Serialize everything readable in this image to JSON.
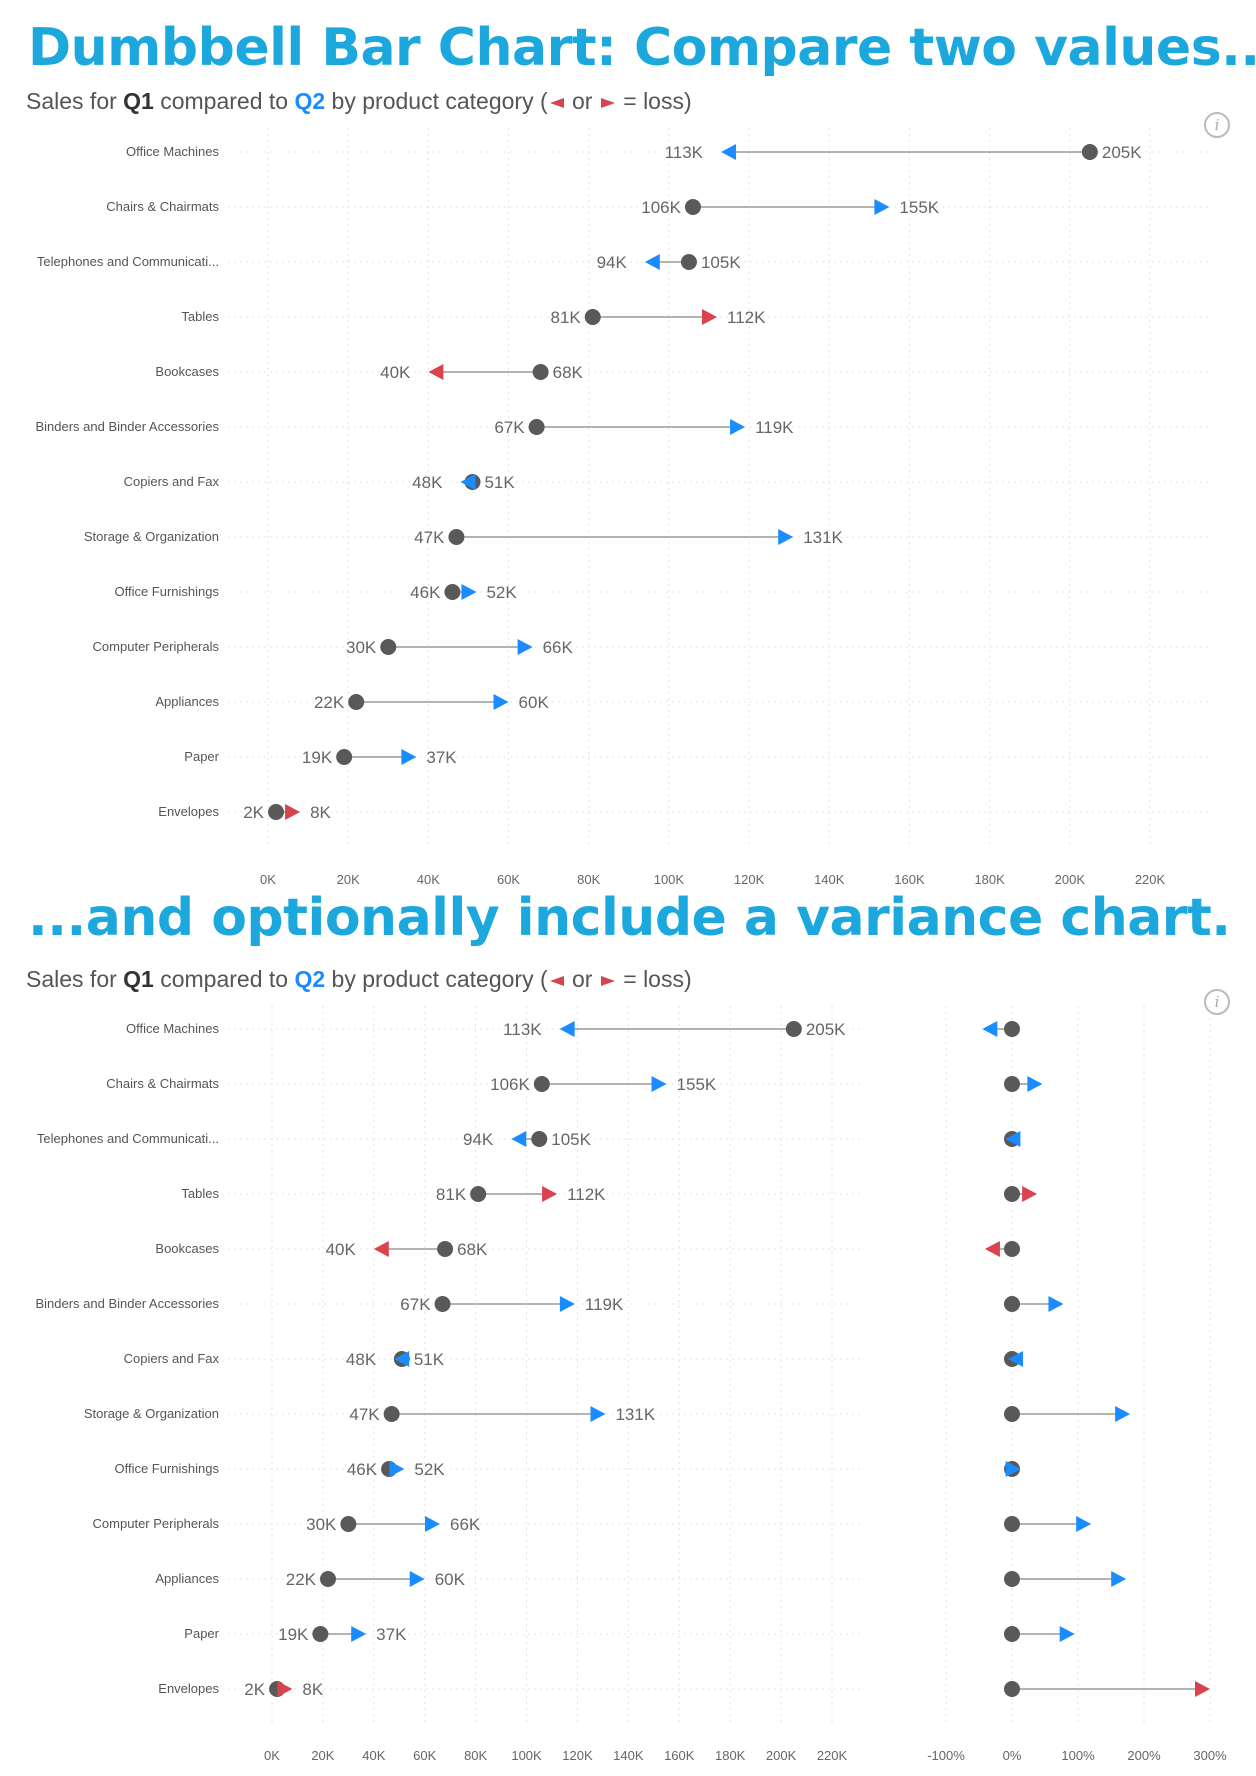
{
  "headline_top": "Dumbbell Bar Chart: Compare two values...",
  "headline_bottom": "...and optionally include a variance chart.",
  "subtitle": {
    "prefix": "Sales for ",
    "q1": "Q1",
    "middle": " compared to ",
    "q2": "Q2",
    "suffix_before": " by product category (",
    "or_text": " or ",
    "suffix_after": " = loss)"
  },
  "info_icon": "info-icon",
  "colors": {
    "gain": "#1a8cff",
    "loss": "#d9434e",
    "dot": "#595959",
    "line": "#b3b3b3",
    "headline": "#1da8dd"
  },
  "chart_data": [
    {
      "type": "dumbbell",
      "xlim": [
        0,
        220000
      ],
      "x_ticks": [
        0,
        20000,
        40000,
        60000,
        80000,
        100000,
        120000,
        140000,
        160000,
        180000,
        200000,
        220000
      ],
      "x_tick_labels": [
        "0K",
        "20K",
        "40K",
        "60K",
        "80K",
        "100K",
        "120K",
        "140K",
        "160K",
        "180K",
        "200K",
        "220K"
      ],
      "grid": true,
      "categories": [
        "Office Machines",
        "Chairs & Chairmats",
        "Telephones and Communicati...",
        "Tables",
        "Bookcases",
        "Binders and Binder Accessories",
        "Copiers and Fax",
        "Storage & Organization",
        "Office Furnishings",
        "Computer Peripherals",
        "Appliances",
        "Paper",
        "Envelopes"
      ],
      "series": [
        {
          "name": "Q1",
          "values": [
            205000,
            106000,
            105000,
            81000,
            68000,
            67000,
            51000,
            47000,
            46000,
            30000,
            22000,
            19000,
            2000
          ],
          "labels": [
            "205K",
            "106K",
            "105K",
            "81K",
            "68K",
            "67K",
            "51K",
            "47K",
            "46K",
            "30K",
            "22K",
            "19K",
            "2K"
          ]
        },
        {
          "name": "Q2",
          "values": [
            113000,
            155000,
            94000,
            112000,
            40000,
            119000,
            48000,
            131000,
            52000,
            66000,
            60000,
            37000,
            8000
          ],
          "labels": [
            "113K",
            "155K",
            "94K",
            "112K",
            "40K",
            "119K",
            "48K",
            "131K",
            "52K",
            "66K",
            "60K",
            "37K",
            "8K"
          ]
        }
      ],
      "loss_flags": [
        false,
        false,
        false,
        true,
        true,
        false,
        false,
        false,
        false,
        false,
        false,
        false,
        true
      ]
    },
    {
      "type": "dumbbell",
      "xlim": [
        0,
        220000
      ],
      "x_ticks": [
        0,
        20000,
        40000,
        60000,
        80000,
        100000,
        120000,
        140000,
        160000,
        180000,
        200000,
        220000
      ],
      "x_tick_labels": [
        "0K",
        "20K",
        "40K",
        "60K",
        "80K",
        "100K",
        "120K",
        "140K",
        "160K",
        "180K",
        "200K",
        "220K"
      ],
      "grid": true,
      "categories": [
        "Office Machines",
        "Chairs & Chairmats",
        "Telephones and Communicati...",
        "Tables",
        "Bookcases",
        "Binders and Binder Accessories",
        "Copiers and Fax",
        "Storage & Organization",
        "Office Furnishings",
        "Computer Peripherals",
        "Appliances",
        "Paper",
        "Envelopes"
      ],
      "series": [
        {
          "name": "Q1",
          "values": [
            205000,
            106000,
            105000,
            81000,
            68000,
            67000,
            51000,
            47000,
            46000,
            30000,
            22000,
            19000,
            2000
          ],
          "labels": [
            "205K",
            "106K",
            "105K",
            "81K",
            "68K",
            "67K",
            "51K",
            "47K",
            "46K",
            "30K",
            "22K",
            "19K",
            "2K"
          ]
        },
        {
          "name": "Q2",
          "values": [
            113000,
            155000,
            94000,
            112000,
            40000,
            119000,
            48000,
            131000,
            52000,
            66000,
            60000,
            37000,
            8000
          ],
          "labels": [
            "113K",
            "155K",
            "94K",
            "112K",
            "40K",
            "119K",
            "48K",
            "131K",
            "52K",
            "66K",
            "60K",
            "37K",
            "8K"
          ]
        }
      ],
      "loss_flags": [
        false,
        false,
        false,
        true,
        true,
        false,
        false,
        false,
        false,
        false,
        false,
        false,
        true
      ]
    },
    {
      "type": "variance",
      "xlim": [
        -1.0,
        3.0
      ],
      "x_ticks": [
        -1.0,
        0,
        1.0,
        2.0,
        3.0
      ],
      "x_tick_labels": [
        "-100%",
        "0%",
        "100%",
        "200%",
        "300%"
      ],
      "grid": true,
      "categories": [
        "Office Machines",
        "Chairs & Chairmats",
        "Telephones and Communicati...",
        "Tables",
        "Bookcases",
        "Binders and Binder Accessories",
        "Copiers and Fax",
        "Storage & Organization",
        "Office Furnishings",
        "Computer Peripherals",
        "Appliances",
        "Paper",
        "Envelopes"
      ],
      "variance": [
        -0.45,
        0.46,
        -0.1,
        0.38,
        -0.41,
        0.78,
        -0.06,
        1.79,
        0.13,
        1.2,
        1.73,
        0.95,
        3.0
      ],
      "loss_flags": [
        false,
        false,
        false,
        true,
        true,
        false,
        false,
        false,
        false,
        false,
        false,
        false,
        true
      ]
    }
  ]
}
